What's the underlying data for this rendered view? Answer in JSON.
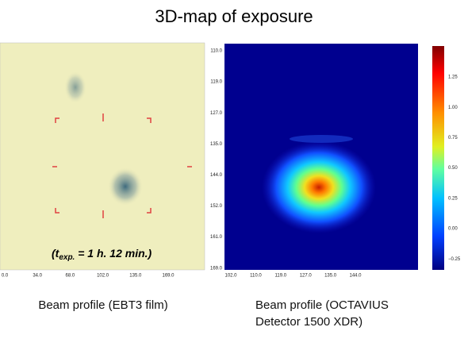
{
  "title": "3D-map of exposure",
  "left_panel": {
    "x_ticks": [
      "0.0",
      "34.0",
      "68.0",
      "102.0",
      "135.0",
      "169.0"
    ],
    "annotation": {
      "open": "(t",
      "subscript": "exp.",
      "rest": " = 1 h. 12 min.)"
    },
    "caption": "Beam profile (EBT3 film)"
  },
  "right_panel": {
    "y_ticks": [
      "110.0",
      "119.0",
      "127.0",
      "135.0",
      "144.0",
      "152.0",
      "161.0",
      "169.0"
    ],
    "x_ticks": [
      "102.0",
      "110.0",
      "119.0",
      "127.0",
      "135.0",
      "144.0"
    ],
    "colorbar_ticks": [
      "1.25",
      "1.00",
      "0.75",
      "0.50",
      "0.25",
      "0.00",
      "−0.25"
    ],
    "caption_lines": [
      "Beam profile (OCTAVIUS",
      "Detector 1500 XDR)"
    ]
  }
}
